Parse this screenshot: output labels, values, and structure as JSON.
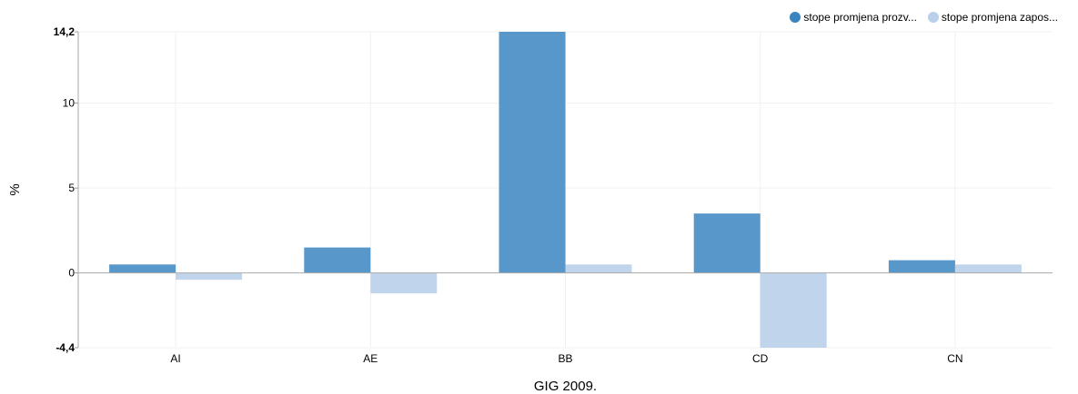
{
  "chart_data": {
    "type": "bar",
    "categories": [
      "AI",
      "AE",
      "BB",
      "CD",
      "CN"
    ],
    "series": [
      {
        "name": "stope promjena prozv...",
        "values": [
          0.5,
          1.5,
          14.2,
          3.5,
          0.75
        ],
        "color": "#3a85c0"
      },
      {
        "name": "stope promjena zapos...",
        "values": [
          -0.4,
          -1.2,
          0.5,
          -4.4,
          0.5
        ],
        "color": "#b9cfea"
      }
    ],
    "ylim": [
      -4.4,
      14.2
    ],
    "yticks": [
      "-4,4",
      "0",
      "5",
      "10",
      "14,2"
    ],
    "ytick_values": [
      -4.4,
      0,
      5,
      10,
      14.2
    ],
    "ylabel": "%",
    "xlabel": "GIG 2009.",
    "legend_position": "top-right",
    "grid": true
  }
}
